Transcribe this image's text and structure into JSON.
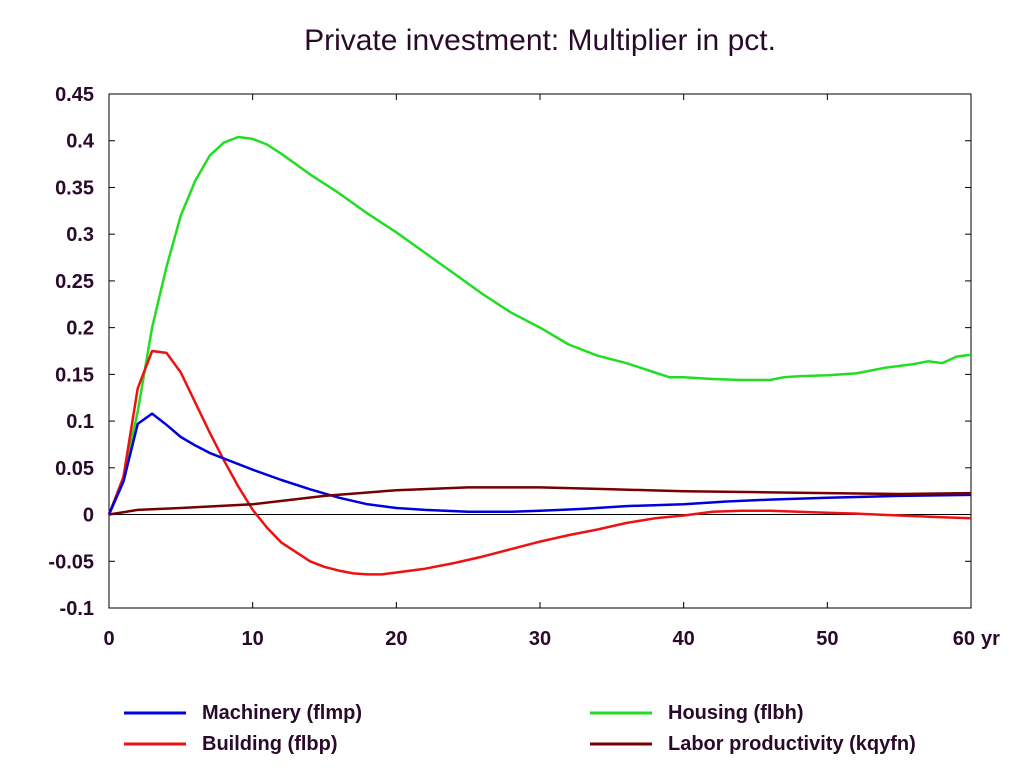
{
  "chart_data": {
    "type": "line",
    "title": "Private investment: Multiplier in pct.",
    "xlabel": "",
    "ylabel": "",
    "xlim": [
      0,
      60
    ],
    "ylim": [
      -0.1,
      0.45
    ],
    "x_unit_label": "yr",
    "xticks": [
      0,
      10,
      20,
      30,
      40,
      50,
      60
    ],
    "yticks": [
      -0.1,
      -0.05,
      0,
      0.05,
      0.1,
      0.15,
      0.2,
      0.25,
      0.3,
      0.35,
      0.4,
      0.45
    ],
    "ytick_labels": [
      "-0.1",
      "-0.05",
      "0",
      "0.05",
      "0.1",
      "0.15",
      "0.2",
      "0.25",
      "0.3",
      "0.35",
      "0.4",
      "0.45"
    ],
    "grid": false,
    "zero_line": true,
    "legend": "bottom",
    "series": [
      {
        "name": "Machinery (flmp)",
        "color": "#0000dd",
        "x": [
          0,
          1,
          2,
          3,
          4,
          5,
          6,
          7,
          8,
          10,
          12,
          14,
          16,
          18,
          20,
          22,
          25,
          28,
          30,
          33,
          36,
          40,
          43,
          46,
          50,
          55,
          60
        ],
        "y": [
          0,
          0.035,
          0.097,
          0.108,
          0.096,
          0.083,
          0.074,
          0.066,
          0.06,
          0.048,
          0.037,
          0.027,
          0.018,
          0.011,
          0.007,
          0.005,
          0.003,
          0.003,
          0.004,
          0.006,
          0.009,
          0.011,
          0.014,
          0.016,
          0.018,
          0.02,
          0.021
        ]
      },
      {
        "name": "Housing (flbh)",
        "color": "#22dd22",
        "x": [
          0,
          1,
          2,
          3,
          4,
          5,
          6,
          7,
          8,
          9,
          10,
          11,
          12,
          14,
          16,
          18,
          20,
          22,
          24,
          26,
          28,
          30,
          32,
          34,
          36,
          38,
          39,
          40,
          42,
          44,
          46,
          47,
          48,
          50,
          52,
          54,
          56,
          57,
          58,
          59,
          60
        ],
        "y": [
          0,
          0.04,
          0.11,
          0.2,
          0.265,
          0.32,
          0.357,
          0.384,
          0.398,
          0.404,
          0.402,
          0.396,
          0.386,
          0.364,
          0.344,
          0.322,
          0.302,
          0.28,
          0.258,
          0.236,
          0.216,
          0.2,
          0.182,
          0.17,
          0.162,
          0.152,
          0.147,
          0.147,
          0.145,
          0.144,
          0.144,
          0.147,
          0.148,
          0.149,
          0.151,
          0.157,
          0.161,
          0.164,
          0.162,
          0.169,
          0.171
        ]
      },
      {
        "name": "Building (flbp)",
        "color": "#ee1111",
        "x": [
          0,
          1,
          2,
          3,
          4,
          5,
          6,
          7,
          8,
          9,
          10,
          11,
          12,
          14,
          15,
          16,
          17,
          18,
          19,
          20,
          22,
          24,
          26,
          28,
          30,
          32,
          34,
          36,
          38,
          40,
          42,
          44,
          46,
          48,
          50,
          52,
          55,
          58,
          60
        ],
        "y": [
          0,
          0.04,
          0.135,
          0.175,
          0.173,
          0.152,
          0.12,
          0.088,
          0.058,
          0.03,
          0.005,
          -0.014,
          -0.03,
          -0.05,
          -0.056,
          -0.06,
          -0.063,
          -0.064,
          -0.064,
          -0.062,
          -0.058,
          -0.052,
          -0.045,
          -0.037,
          -0.029,
          -0.022,
          -0.016,
          -0.009,
          -0.004,
          -0.001,
          0.003,
          0.004,
          0.004,
          0.003,
          0.002,
          0.001,
          -0.001,
          -0.003,
          -0.004
        ]
      },
      {
        "name": "Labor productivity (kqyfn)",
        "color": "#770000",
        "x": [
          0,
          2,
          5,
          10,
          15,
          20,
          25,
          30,
          35,
          40,
          45,
          50,
          55,
          60
        ],
        "y": [
          0,
          0.005,
          0.007,
          0.011,
          0.02,
          0.026,
          0.029,
          0.029,
          0.027,
          0.025,
          0.024,
          0.023,
          0.022,
          0.023
        ]
      }
    ]
  }
}
